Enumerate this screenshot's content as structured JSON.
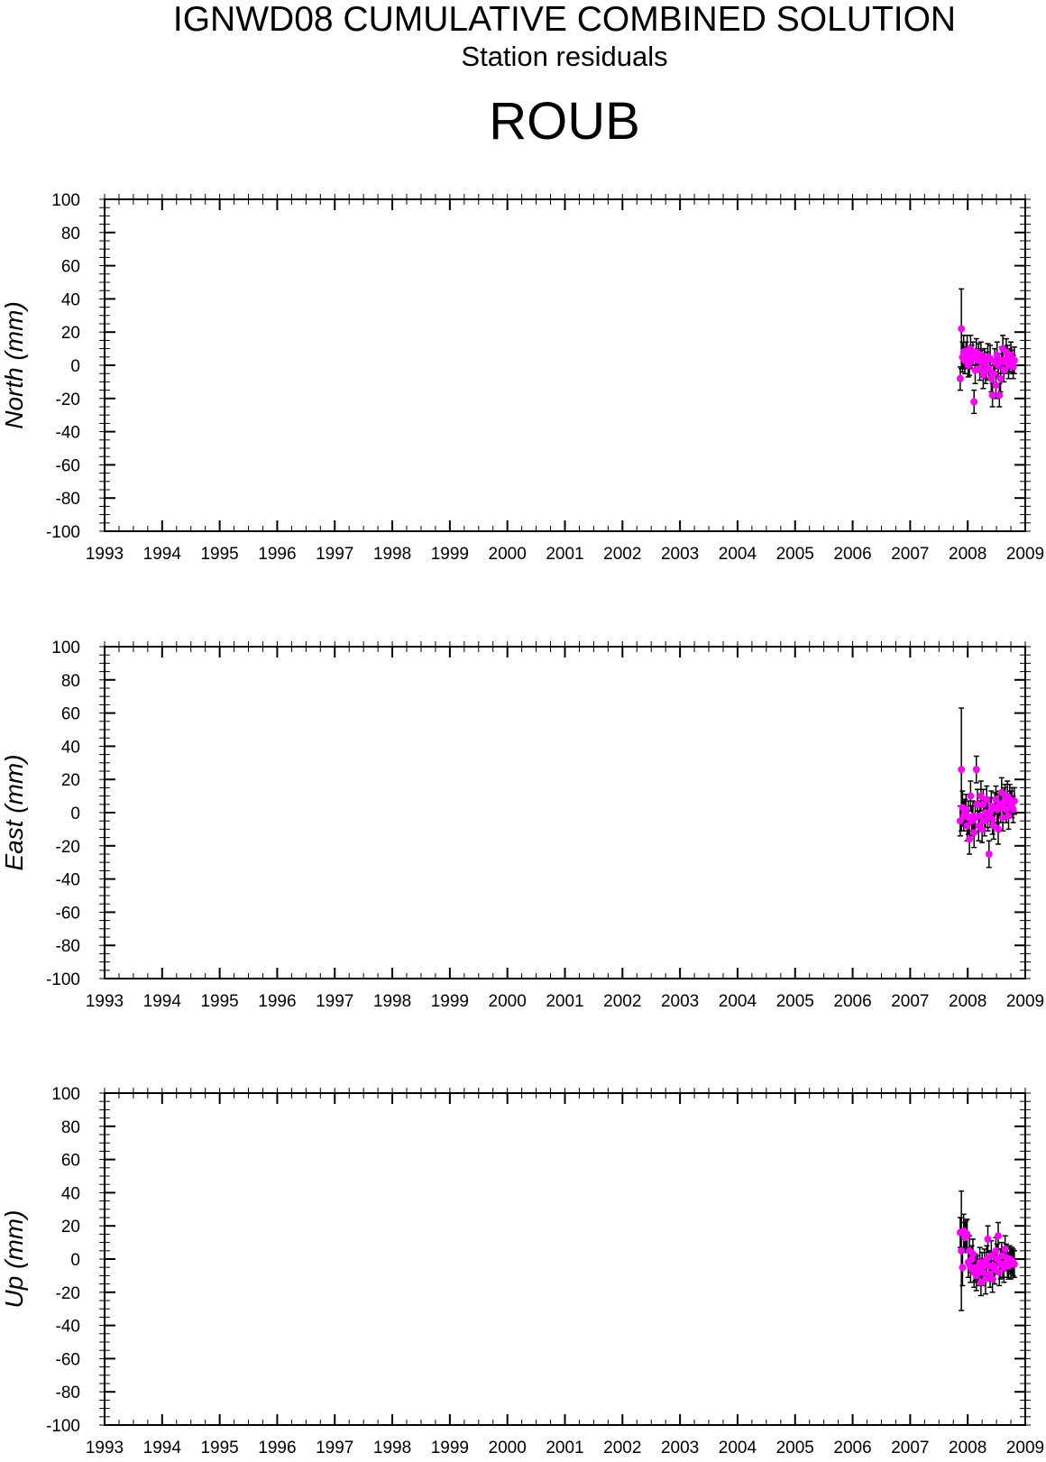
{
  "header": {
    "title": "IGNWD08 CUMULATIVE COMBINED SOLUTION",
    "subtitle": "Station residuals",
    "station": "ROUB"
  },
  "colors": {
    "point": "#ff00ff",
    "errorbar": "#000000",
    "axis": "#000000"
  },
  "chart_data": [
    {
      "type": "scatter",
      "ylabel": "North (mm)",
      "xlim": [
        1993,
        2009
      ],
      "ylim": [
        -100,
        100
      ],
      "xticks": [
        "1993",
        "1994",
        "1995",
        "1996",
        "1997",
        "1998",
        "1999",
        "2000",
        "2001",
        "2002",
        "2003",
        "2004",
        "2005",
        "2006",
        "2007",
        "2008",
        "2009"
      ],
      "yticks": [
        "100",
        "80",
        "60",
        "40",
        "20",
        "0",
        "-20",
        "-40",
        "-60",
        "-80",
        "-100"
      ],
      "grid": false,
      "series": [
        {
          "x": [
            2007.87,
            2007.89,
            2007.91,
            2007.93,
            2007.95,
            2007.97,
            2007.99,
            2008.01,
            2008.03,
            2008.05,
            2008.07,
            2008.09,
            2008.11,
            2008.13,
            2008.15,
            2008.17,
            2008.19,
            2008.21,
            2008.23,
            2008.25,
            2008.27,
            2008.29,
            2008.31,
            2008.33,
            2008.35,
            2008.37,
            2008.39,
            2008.41,
            2008.43,
            2008.45,
            2008.47,
            2008.49,
            2008.51,
            2008.53,
            2008.55,
            2008.57,
            2008.59,
            2008.61,
            2008.63,
            2008.65,
            2008.67,
            2008.69,
            2008.71,
            2008.73,
            2008.75,
            2008.77,
            2008.79,
            2008.81
          ],
          "y": [
            -8,
            22,
            5,
            8,
            3,
            6,
            9,
            0,
            2,
            10,
            5,
            7,
            -22,
            -3,
            8,
            3,
            5,
            -2,
            6,
            2,
            -6,
            3,
            -4,
            0,
            5,
            -2,
            4,
            -8,
            -18,
            -5,
            2,
            -12,
            6,
            0,
            -18,
            -8,
            3,
            10,
            -3,
            2,
            8,
            5,
            0,
            3,
            6,
            2,
            -1,
            3
          ],
          "err": [
            7,
            24,
            9,
            10,
            8,
            8,
            9,
            7,
            8,
            8,
            7,
            7,
            7,
            8,
            8,
            7,
            8,
            7,
            8,
            7,
            8,
            7,
            7,
            8,
            8,
            7,
            8,
            8,
            7,
            7,
            8,
            8,
            8,
            7,
            7,
            8,
            8,
            8,
            7,
            7,
            8,
            7,
            8,
            7,
            8,
            7,
            7,
            8
          ]
        }
      ]
    },
    {
      "type": "scatter",
      "ylabel": "East (mm)",
      "xlim": [
        1993,
        2009
      ],
      "ylim": [
        -100,
        100
      ],
      "xticks": [
        "1993",
        "1994",
        "1995",
        "1996",
        "1997",
        "1998",
        "1999",
        "2000",
        "2001",
        "2002",
        "2003",
        "2004",
        "2005",
        "2006",
        "2007",
        "2008",
        "2009"
      ],
      "yticks": [
        "100",
        "80",
        "60",
        "40",
        "20",
        "0",
        "-20",
        "-40",
        "-60",
        "-80",
        "-100"
      ],
      "grid": false,
      "series": [
        {
          "x": [
            2007.87,
            2007.89,
            2007.91,
            2007.93,
            2007.95,
            2007.97,
            2007.99,
            2008.01,
            2008.03,
            2008.05,
            2008.07,
            2008.09,
            2008.11,
            2008.13,
            2008.15,
            2008.17,
            2008.19,
            2008.21,
            2008.23,
            2008.25,
            2008.27,
            2008.29,
            2008.31,
            2008.33,
            2008.35,
            2008.37,
            2008.39,
            2008.41,
            2008.43,
            2008.45,
            2008.47,
            2008.49,
            2008.51,
            2008.53,
            2008.55,
            2008.57,
            2008.59,
            2008.61,
            2008.63,
            2008.65,
            2008.67,
            2008.69,
            2008.71,
            2008.73,
            2008.75,
            2008.77,
            2008.79,
            2008.81
          ],
          "y": [
            -5,
            26,
            3,
            -2,
            0,
            2,
            -8,
            -3,
            -16,
            10,
            -5,
            -2,
            -12,
            -3,
            26,
            5,
            -8,
            -2,
            10,
            -10,
            5,
            -5,
            0,
            8,
            -2,
            -25,
            0,
            4,
            -4,
            -8,
            3,
            8,
            2,
            -10,
            5,
            3,
            12,
            -3,
            6,
            8,
            2,
            10,
            -2,
            8,
            5,
            6,
            2,
            7
          ],
          "err": [
            9,
            37,
            10,
            9,
            8,
            9,
            9,
            10,
            9,
            9,
            9,
            9,
            9,
            9,
            8,
            9,
            9,
            9,
            9,
            8,
            9,
            9,
            9,
            8,
            9,
            8,
            9,
            9,
            9,
            8,
            9,
            8,
            9,
            9,
            8,
            9,
            9,
            8,
            9,
            9,
            8,
            9,
            8,
            9,
            8,
            9,
            8,
            8
          ]
        }
      ]
    },
    {
      "type": "scatter",
      "ylabel": "Up (mm)",
      "xlim": [
        1993,
        2009
      ],
      "ylim": [
        -100,
        100
      ],
      "xticks": [
        "1993",
        "1994",
        "1995",
        "1996",
        "1997",
        "1998",
        "1999",
        "2000",
        "2001",
        "2002",
        "2003",
        "2004",
        "2005",
        "2006",
        "2007",
        "2008",
        "2009"
      ],
      "yticks": [
        "100",
        "80",
        "60",
        "40",
        "20",
        "0",
        "-20",
        "-40",
        "-60",
        "-80",
        "-100"
      ],
      "grid": false,
      "series": [
        {
          "x": [
            2007.87,
            2007.89,
            2007.91,
            2007.93,
            2007.95,
            2007.97,
            2007.99,
            2008.01,
            2008.03,
            2008.05,
            2008.07,
            2008.09,
            2008.11,
            2008.13,
            2008.15,
            2008.17,
            2008.19,
            2008.21,
            2008.23,
            2008.25,
            2008.27,
            2008.29,
            2008.31,
            2008.33,
            2008.35,
            2008.37,
            2008.39,
            2008.41,
            2008.43,
            2008.45,
            2008.47,
            2008.49,
            2008.51,
            2008.53,
            2008.55,
            2008.57,
            2008.59,
            2008.61,
            2008.63,
            2008.65,
            2008.67,
            2008.69,
            2008.71,
            2008.73,
            2008.75,
            2008.77,
            2008.79,
            2008.81
          ],
          "y": [
            16,
            5,
            -5,
            17,
            13,
            14,
            15,
            -2,
            5,
            -5,
            0,
            3,
            -8,
            -5,
            -10,
            -6,
            -8,
            -2,
            -14,
            -5,
            -8,
            -2,
            -12,
            0,
            12,
            -4,
            -9,
            2,
            -12,
            -4,
            -6,
            5,
            0,
            14,
            -8,
            -3,
            2,
            -3,
            -5,
            6,
            1,
            -2,
            -4,
            0,
            -3,
            -1,
            -2,
            -3
          ],
          "err": [
            9,
            36,
            11,
            10,
            9,
            9,
            9,
            9,
            9,
            9,
            8,
            9,
            9,
            8,
            9,
            8,
            8,
            9,
            8,
            9,
            8,
            8,
            9,
            8,
            8,
            9,
            8,
            9,
            8,
            8,
            9,
            8,
            9,
            8,
            8,
            9,
            8,
            8,
            9,
            8,
            8,
            9,
            8,
            8,
            9,
            8,
            8,
            8
          ]
        }
      ]
    }
  ]
}
